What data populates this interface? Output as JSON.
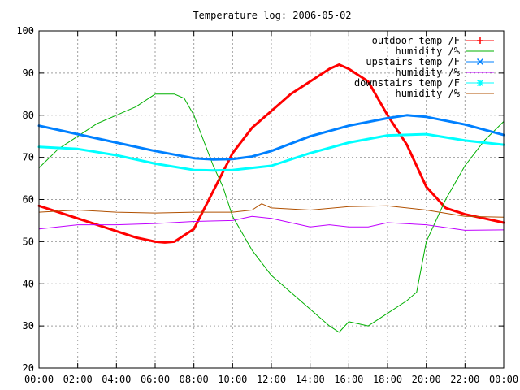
{
  "chart_data": {
    "type": "line",
    "title": "Temperature log: 2006-05-02",
    "xlabel": "",
    "ylabel": "",
    "xlim": [
      0,
      24
    ],
    "ylim": [
      20,
      100
    ],
    "grid": true,
    "legend_position": "top-right",
    "x_ticks": [
      "00:00",
      "02:00",
      "04:00",
      "06:00",
      "08:00",
      "10:00",
      "12:00",
      "14:00",
      "16:00",
      "18:00",
      "20:00",
      "22:00",
      "00:00"
    ],
    "y_ticks": [
      20,
      30,
      40,
      50,
      60,
      70,
      80,
      90,
      100
    ],
    "series": [
      {
        "name": "outdoor temp /F",
        "color": "#ff0000",
        "marker": "plus",
        "linewidth": 3,
        "x": [
          0,
          1,
          2,
          3,
          4,
          5,
          6,
          6.5,
          7,
          8,
          9,
          10,
          11,
          12,
          13,
          14,
          15,
          15.5,
          16,
          17,
          18,
          19,
          20,
          21,
          22,
          23,
          24
        ],
        "y": [
          58.5,
          57,
          55.5,
          54,
          52.5,
          51,
          50,
          49.8,
          50,
          53,
          62,
          71,
          77,
          81,
          85,
          88,
          91,
          92,
          91,
          88,
          80,
          73,
          63,
          58,
          56.5,
          55.5,
          54.5
        ]
      },
      {
        "name": "humidity /%",
        "color": "#00b000",
        "marker": "none",
        "linewidth": 1,
        "x": [
          0,
          1,
          2,
          3,
          4,
          5,
          6,
          7,
          7.5,
          8,
          9,
          9.5,
          10,
          11,
          12,
          13,
          14,
          15,
          15.5,
          16,
          17,
          18,
          19,
          19.5,
          20,
          21,
          22,
          23,
          24
        ],
        "y": [
          67.5,
          72,
          75,
          78,
          80,
          82,
          85,
          85,
          84,
          80,
          68,
          63,
          56,
          48,
          42,
          38,
          34,
          30,
          28.5,
          31,
          30,
          33,
          36,
          38,
          50,
          60,
          68,
          74,
          78.5
        ]
      },
      {
        "name": "upstairs temp /F",
        "color": "#0080ff",
        "marker": "cross",
        "linewidth": 3,
        "x": [
          0,
          2,
          4,
          6,
          8,
          9,
          10,
          11,
          12,
          14,
          16,
          18,
          19,
          20,
          22,
          24
        ],
        "y": [
          77.5,
          75.5,
          73.5,
          71.5,
          69.8,
          69.5,
          69.6,
          70.2,
          71.5,
          75,
          77.5,
          79.3,
          80,
          79.6,
          77.8,
          75.3
        ]
      },
      {
        "name": "humidity /%",
        "color": "#c000ff",
        "marker": "none",
        "linewidth": 1,
        "x": [
          0,
          2,
          4,
          6,
          8,
          10,
          11,
          12,
          13,
          14,
          15,
          16,
          17,
          18,
          20,
          22,
          24
        ],
        "y": [
          53,
          54,
          54,
          54.3,
          54.8,
          55,
          56,
          55.5,
          54.5,
          53.5,
          54,
          53.5,
          53.5,
          54.5,
          54,
          52.7,
          52.8
        ]
      },
      {
        "name": "downstairs temp /F",
        "color": "#00ffff",
        "marker": "star",
        "linewidth": 3,
        "x": [
          0,
          2,
          4,
          6,
          8,
          9,
          10,
          12,
          14,
          16,
          18,
          20,
          22,
          24
        ],
        "y": [
          72.5,
          72,
          70.5,
          68.5,
          67,
          66.9,
          67,
          68,
          71,
          73.5,
          75.2,
          75.5,
          74,
          73
        ]
      },
      {
        "name": "humidity /%",
        "color": "#b05000",
        "marker": "none",
        "linewidth": 1,
        "x": [
          0,
          2,
          4,
          6,
          8,
          10,
          11,
          11.5,
          12,
          14,
          16,
          18,
          20,
          22,
          24
        ],
        "y": [
          57,
          57.5,
          57,
          56.8,
          57,
          57,
          57.5,
          59,
          58,
          57.5,
          58.3,
          58.5,
          57.5,
          56,
          55.8
        ]
      }
    ]
  }
}
